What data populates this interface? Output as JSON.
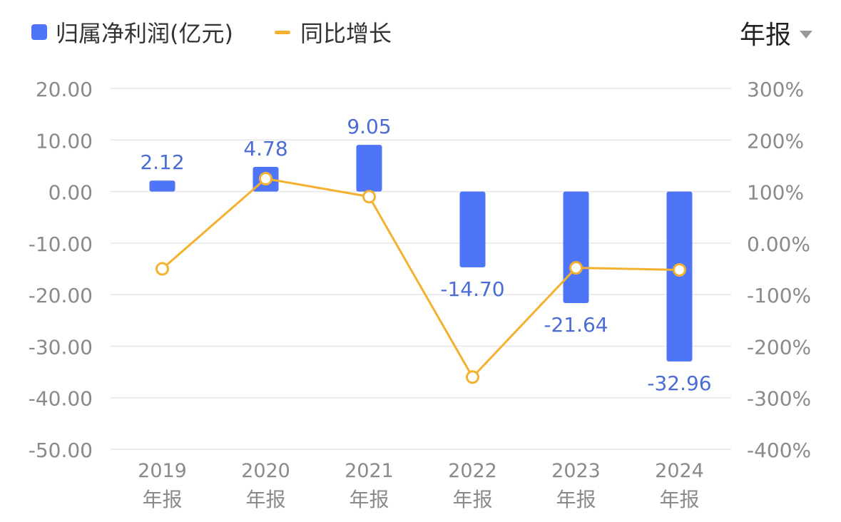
{
  "header": {
    "legend": [
      {
        "label": "归属净利润(亿元)",
        "swatch": "bar"
      },
      {
        "label": "同比增长",
        "swatch": "line"
      }
    ],
    "period_selector": {
      "selected": "年报"
    }
  },
  "colors": {
    "bar": "#4e74f7",
    "line": "#f4b12f",
    "bar_label": "#4a6cd4",
    "axis_text": "#8a8a8a",
    "grid": "#e6e6e6"
  },
  "chart_data": {
    "type": "bar",
    "categories": [
      [
        "2019",
        "年报"
      ],
      [
        "2020",
        "年报"
      ],
      [
        "2021",
        "年报"
      ],
      [
        "2022",
        "年报"
      ],
      [
        "2023",
        "年报"
      ],
      [
        "2024",
        "年报"
      ]
    ],
    "series": [
      {
        "name": "归属净利润(亿元)",
        "type": "bar",
        "axis": "left",
        "values": [
          2.12,
          4.78,
          9.05,
          -14.7,
          -21.64,
          -32.96
        ],
        "labels": [
          "2.12",
          "4.78",
          "9.05",
          "-14.70",
          "-21.64",
          "-32.96"
        ]
      },
      {
        "name": "同比增长",
        "type": "line",
        "axis": "right",
        "values": [
          -50,
          125,
          90,
          -260,
          -48,
          -52
        ]
      }
    ],
    "y_left": {
      "min": -50,
      "max": 20,
      "ticks": [
        "20.00",
        "10.00",
        "0.00",
        "-10.00",
        "-20.00",
        "-30.00",
        "-40.00",
        "-50.00"
      ]
    },
    "y_right": {
      "min": -400,
      "max": 300,
      "ticks": [
        "300%",
        "200%",
        "100%",
        "0.00%",
        "-100%",
        "-200%",
        "-300%",
        "-400%"
      ]
    },
    "grid": true,
    "legend_position": "top-left"
  }
}
